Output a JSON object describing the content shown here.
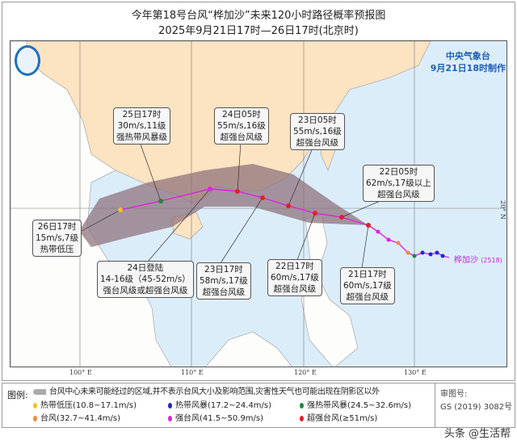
{
  "title": "今年第18号台风“桦加沙”未来120小时路径概率预报图",
  "subtitle": "2025年9月21日17时—26日17时(北京时)",
  "agency": {
    "name": "中央气象台",
    "made": "9月21日18时制作"
  },
  "axes": {
    "lon": [
      "100° E",
      "110° E",
      "120° E",
      "130° E"
    ],
    "lat": [
      "20° N"
    ]
  },
  "typhoon_label": "桦加沙",
  "typhoon_id": "(2518)",
  "colors": {
    "land_china": "#fce3c2",
    "land_other": "#fdfdfb",
    "sea": "#dcedfa",
    "cone": "#8c6f78",
    "track": "#e020e0"
  },
  "forecasts": [
    {
      "time": "21日17时",
      "wind": "60m/s,17级",
      "level": "超强台风级",
      "color": "#e0202a"
    },
    {
      "time": "22日05时",
      "wind": "62m/s,17级以上",
      "level": "超强台风级",
      "color": "#e0202a"
    },
    {
      "time": "22日17时",
      "wind": "60m/s,17级",
      "level": "超强台风级",
      "color": "#e0202a"
    },
    {
      "time": "23日05时",
      "wind": "55m/s,16级",
      "level": "超强台风级",
      "color": "#e0202a"
    },
    {
      "time": "23日17时",
      "wind": "58m/s,17级",
      "level": "超强台风级",
      "color": "#e0202a"
    },
    {
      "time": "24日05时",
      "wind": "55m/s,16级",
      "level": "超强台风级",
      "color": "#e0202a"
    },
    {
      "time": "24日登陆",
      "wind": "14-16级（45-52m/s）",
      "level": "强台风级或超强台风级",
      "color": "#e020e0"
    },
    {
      "time": "25日17时",
      "wind": "30m/s,11级",
      "level": "强热带风暴级",
      "color": "#1a8a3a"
    },
    {
      "time": "26日17时",
      "wind": "15m/s,7级",
      "level": "热带低压",
      "color": "#f0c020"
    }
  ],
  "legend": {
    "heading": "图例:",
    "cone_desc": "台风中心未来可能经过的区域,并不表示台风大小及影响范围,灾害性天气也可能出现在阴影区以外",
    "items": [
      {
        "label": "热带低压(10.8~17.1m/s)",
        "color": "#f5c518"
      },
      {
        "label": "热带风暴(17.2~24.4m/s)",
        "color": "#1a2ad0"
      },
      {
        "label": "强热带风暴(24.5~32.6m/s)",
        "color": "#1a8a3a"
      },
      {
        "label": "台风(32.7~41.4m/s)",
        "color": "#f08a40"
      },
      {
        "label": "强台风(41.5~50.9m/s)",
        "color": "#e020e0"
      },
      {
        "label": "超强台风(≥51m/s)",
        "color": "#e0202a"
      }
    ],
    "review_label": "审图号:",
    "review_no": "GS (2019) 3082号"
  },
  "watermark": "头条 @生活帮"
}
